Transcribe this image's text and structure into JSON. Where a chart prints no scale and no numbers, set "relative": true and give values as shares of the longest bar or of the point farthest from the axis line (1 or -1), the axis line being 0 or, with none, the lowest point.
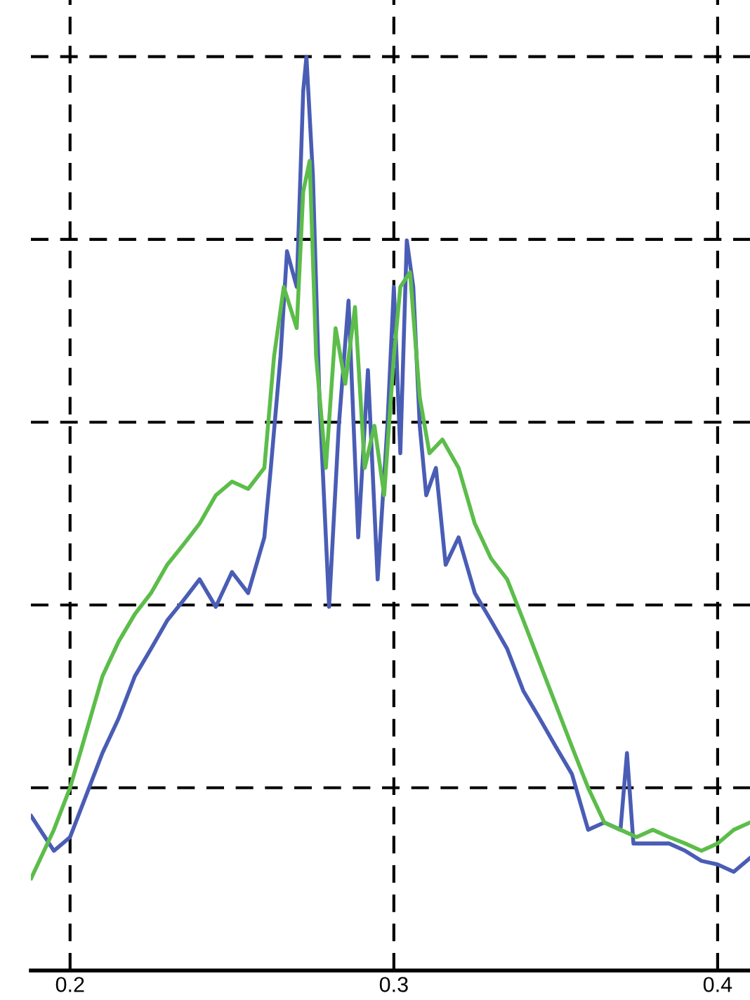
{
  "chart_data": {
    "type": "line",
    "relative": true,
    "xlim": [
      0.1879,
      0.41
    ],
    "xticks": [
      0.2,
      0.3,
      0.4
    ],
    "grid": true,
    "line_style": "solid",
    "series": [
      {
        "color": "#4a5db5",
        "x": [
          0.188,
          0.195,
          0.2,
          0.205,
          0.21,
          0.215,
          0.22,
          0.225,
          0.23,
          0.235,
          0.24,
          0.245,
          0.25,
          0.255,
          0.26,
          0.262,
          0.265,
          0.267,
          0.27,
          0.272,
          0.273,
          0.275,
          0.277,
          0.28,
          0.283,
          0.286,
          0.289,
          0.292,
          0.295,
          0.298,
          0.3,
          0.302,
          0.304,
          0.306,
          0.308,
          0.31,
          0.313,
          0.316,
          0.32,
          0.325,
          0.33,
          0.335,
          0.34,
          0.345,
          0.35,
          0.355,
          0.36,
          0.365,
          0.37,
          0.372,
          0.374,
          0.38,
          0.385,
          0.39,
          0.395,
          0.4,
          0.405,
          0.41
        ],
        "values": [
          0.169,
          0.131,
          0.146,
          0.192,
          0.238,
          0.276,
          0.322,
          0.352,
          0.383,
          0.405,
          0.428,
          0.398,
          0.436,
          0.413,
          0.474,
          0.55,
          0.672,
          0.787,
          0.748,
          0.962,
          1,
          0.87,
          0.627,
          0.398,
          0.596,
          0.733,
          0.474,
          0.657,
          0.428,
          0.596,
          0.748,
          0.566,
          0.799,
          0.748,
          0.596,
          0.52,
          0.55,
          0.444,
          0.474,
          0.413,
          0.383,
          0.352,
          0.306,
          0.276,
          0.245,
          0.215,
          0.154,
          0.162,
          0.154,
          0.238,
          0.139,
          0.139,
          0.139,
          0.131,
          0.12,
          0.116,
          0.108,
          0.123
        ]
      },
      {
        "color": "#5cbd4a",
        "x": [
          0.188,
          0.195,
          0.2,
          0.205,
          0.21,
          0.215,
          0.22,
          0.225,
          0.23,
          0.235,
          0.24,
          0.245,
          0.25,
          0.255,
          0.26,
          0.263,
          0.266,
          0.27,
          0.272,
          0.274,
          0.276,
          0.279,
          0.282,
          0.285,
          0.288,
          0.291,
          0.294,
          0.297,
          0.3,
          0.302,
          0.305,
          0.308,
          0.311,
          0.315,
          0.32,
          0.325,
          0.33,
          0.335,
          0.34,
          0.345,
          0.35,
          0.355,
          0.36,
          0.365,
          0.37,
          0.375,
          0.38,
          0.385,
          0.39,
          0.395,
          0.4,
          0.405,
          0.41
        ],
        "values": [
          0.101,
          0.154,
          0.2,
          0.261,
          0.322,
          0.36,
          0.39,
          0.413,
          0.444,
          0.466,
          0.489,
          0.52,
          0.535,
          0.527,
          0.55,
          0.672,
          0.748,
          0.703,
          0.852,
          0.886,
          0.672,
          0.55,
          0.703,
          0.642,
          0.726,
          0.55,
          0.596,
          0.52,
          0.672,
          0.748,
          0.764,
          0.627,
          0.566,
          0.581,
          0.55,
          0.489,
          0.451,
          0.428,
          0.383,
          0.337,
          0.291,
          0.245,
          0.2,
          0.162,
          0.154,
          0.146,
          0.154,
          0.146,
          0.139,
          0.131,
          0.139,
          0.154,
          0.162
        ]
      }
    ]
  }
}
